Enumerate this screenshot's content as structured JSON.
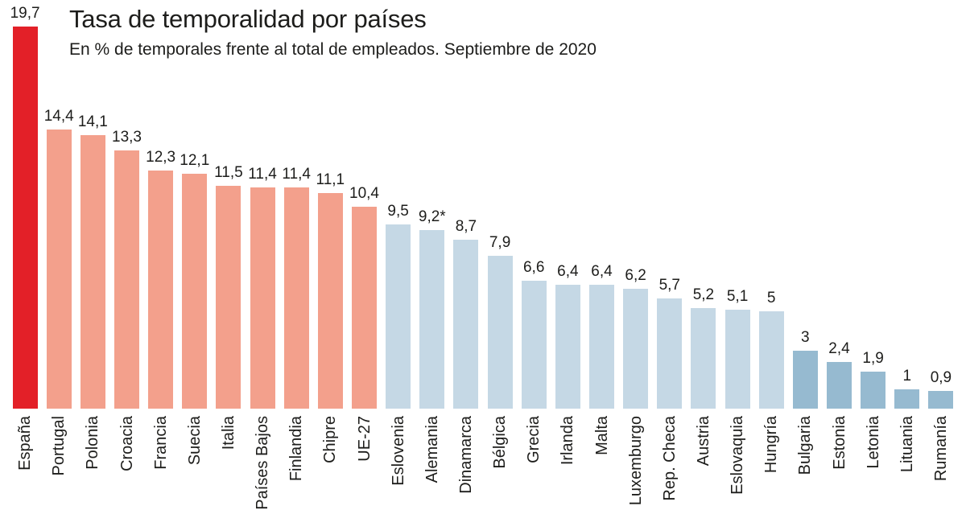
{
  "chart_data": {
    "type": "bar",
    "title": "Tasa de temporalidad por países",
    "subtitle": "En % de temporales frente al total de empleados. Septiembre de 2020",
    "unit": "%",
    "xlabel": "",
    "ylabel": "",
    "ylim": [
      0,
      19.7
    ],
    "grid": false,
    "legend_position": "none",
    "value_labels_shown": true,
    "category_label_rotation": "vertical-bottom-to-top",
    "colors": {
      "spain": "#e32028",
      "salmon": "#f3a08c",
      "light_blue": "#c5d8e5",
      "steel_blue": "#96bad0",
      "text": "#1d1d1b"
    },
    "bars": [
      {
        "country": "España",
        "value": 19.7,
        "display": "19,7",
        "group": "spain"
      },
      {
        "country": "Portugal",
        "value": 14.4,
        "display": "14,4",
        "group": "salmon"
      },
      {
        "country": "Polonia",
        "value": 14.1,
        "display": "14,1",
        "group": "salmon"
      },
      {
        "country": "Croacia",
        "value": 13.3,
        "display": "13,3",
        "group": "salmon"
      },
      {
        "country": "Francia",
        "value": 12.3,
        "display": "12,3",
        "group": "salmon"
      },
      {
        "country": "Suecia",
        "value": 12.1,
        "display": "12,1",
        "group": "salmon"
      },
      {
        "country": "Italia",
        "value": 11.5,
        "display": "11,5",
        "group": "salmon"
      },
      {
        "country": "Países Bajos",
        "value": 11.4,
        "display": "11,4",
        "group": "salmon"
      },
      {
        "country": "Finlandia",
        "value": 11.4,
        "display": "11,4",
        "group": "salmon"
      },
      {
        "country": "Chipre",
        "value": 11.1,
        "display": "11,1",
        "group": "salmon"
      },
      {
        "country": "UE-27",
        "value": 10.4,
        "display": "10,4",
        "group": "salmon"
      },
      {
        "country": "Eslovenia",
        "value": 9.5,
        "display": "9,5",
        "group": "light_blue"
      },
      {
        "country": "Alemania",
        "value": 9.2,
        "display": "9,2*",
        "group": "light_blue"
      },
      {
        "country": "Dinamarca",
        "value": 8.7,
        "display": "8,7",
        "group": "light_blue"
      },
      {
        "country": "Bélgica",
        "value": 7.9,
        "display": "7,9",
        "group": "light_blue"
      },
      {
        "country": "Grecia",
        "value": 6.6,
        "display": "6,6",
        "group": "light_blue"
      },
      {
        "country": "Irlanda",
        "value": 6.4,
        "display": "6,4",
        "group": "light_blue"
      },
      {
        "country": "Malta",
        "value": 6.4,
        "display": "6,4",
        "group": "light_blue"
      },
      {
        "country": "Luxemburgo",
        "value": 6.2,
        "display": "6,2",
        "group": "light_blue"
      },
      {
        "country": "Rep. Checa",
        "value": 5.7,
        "display": "5,7",
        "group": "light_blue"
      },
      {
        "country": "Austria",
        "value": 5.2,
        "display": "5,2",
        "group": "light_blue"
      },
      {
        "country": "Eslovaquia",
        "value": 5.1,
        "display": "5,1",
        "group": "light_blue"
      },
      {
        "country": "Hungría",
        "value": 5.0,
        "display": "5",
        "group": "light_blue"
      },
      {
        "country": "Bulgaria",
        "value": 3.0,
        "display": "3",
        "group": "steel_blue"
      },
      {
        "country": "Estonia",
        "value": 2.4,
        "display": "2,4",
        "group": "steel_blue"
      },
      {
        "country": "Letonia",
        "value": 1.9,
        "display": "1,9",
        "group": "steel_blue"
      },
      {
        "country": "Lituania",
        "value": 1.0,
        "display": "1",
        "group": "steel_blue"
      },
      {
        "country": "Rumanía",
        "value": 0.9,
        "display": "0,9",
        "group": "steel_blue"
      }
    ]
  }
}
